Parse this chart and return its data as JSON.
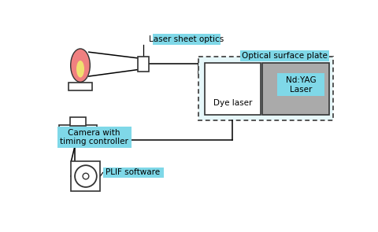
{
  "bg_color": "#ffffff",
  "cyan_label_bg": "#7fd8e8",
  "optical_plate_bg": "#e6f7fa",
  "dye_laser_bg": "#ffffff",
  "ndyag_bg": "#aaaaaa",
  "flame_outer": "#f08080",
  "flame_inner": "#f0e070",
  "label_laser_sheet": "Laser sheet optics",
  "label_optical": "Optical surface plate",
  "label_dye": "Dye laser",
  "label_ndyag": "Nd:YAG\nLaser",
  "label_camera": "Camera with\ntiming controller",
  "label_plif": "PLIF software",
  "figsize": [
    4.8,
    2.95
  ],
  "dpi": 100
}
